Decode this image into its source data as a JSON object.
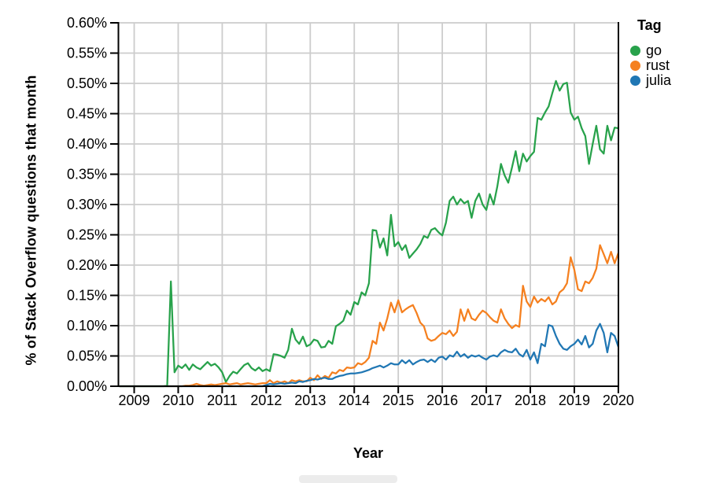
{
  "page": {
    "background": "#ffffff"
  },
  "chart_data": {
    "type": "line",
    "title": "",
    "xlabel": "Year",
    "ylabel": "% of Stack Overflow questions that month",
    "x_unit": "month",
    "x_start": "2008-09",
    "x_end": "2020-01",
    "points_per_series": 137,
    "ylim": [
      0,
      0.6
    ],
    "grid": true,
    "legend": {
      "title": "Tag",
      "position": "right"
    },
    "colors": {
      "axis": "#000000",
      "grid": "#cccccc",
      "text": "#000000"
    },
    "y_ticks": [
      {
        "v": 0.0,
        "label": "0.00%"
      },
      {
        "v": 0.05,
        "label": "0.05%"
      },
      {
        "v": 0.1,
        "label": "0.10%"
      },
      {
        "v": 0.15,
        "label": "0.15%"
      },
      {
        "v": 0.2,
        "label": "0.20%"
      },
      {
        "v": 0.25,
        "label": "0.25%"
      },
      {
        "v": 0.3,
        "label": "0.30%"
      },
      {
        "v": 0.35,
        "label": "0.35%"
      },
      {
        "v": 0.4,
        "label": "0.40%"
      },
      {
        "v": 0.45,
        "label": "0.45%"
      },
      {
        "v": 0.5,
        "label": "0.50%"
      },
      {
        "v": 0.55,
        "label": "0.55%"
      },
      {
        "v": 0.6,
        "label": "0.60%"
      }
    ],
    "x_ticks": [
      {
        "v": 2009,
        "label": "2009"
      },
      {
        "v": 2010,
        "label": "2010"
      },
      {
        "v": 2011,
        "label": "2011"
      },
      {
        "v": 2012,
        "label": "2012"
      },
      {
        "v": 2013,
        "label": "2013"
      },
      {
        "v": 2014,
        "label": "2014"
      },
      {
        "v": 2015,
        "label": "2015"
      },
      {
        "v": 2016,
        "label": "2016"
      },
      {
        "v": 2017,
        "label": "2017"
      },
      {
        "v": 2018,
        "label": "2018"
      },
      {
        "v": 2019,
        "label": "2019"
      },
      {
        "v": 2020,
        "label": "2020"
      }
    ],
    "series": [
      {
        "name": "go",
        "color": "#28a24b",
        "values": [
          0,
          0,
          0,
          0,
          0,
          0,
          0,
          0,
          0,
          0,
          0,
          0,
          0,
          0.001,
          0.173,
          0.023,
          0.034,
          0.03,
          0.036,
          0.027,
          0.036,
          0.031,
          0.028,
          0.034,
          0.04,
          0.034,
          0.037,
          0.031,
          0.023,
          0.007,
          0.017,
          0.024,
          0.021,
          0.028,
          0.035,
          0.038,
          0.03,
          0.026,
          0.031,
          0.025,
          0.028,
          0.025,
          0.053,
          0.052,
          0.05,
          0.047,
          0.06,
          0.095,
          0.077,
          0.07,
          0.082,
          0.066,
          0.069,
          0.077,
          0.075,
          0.064,
          0.065,
          0.075,
          0.07,
          0.099,
          0.103,
          0.108,
          0.125,
          0.118,
          0.139,
          0.135,
          0.155,
          0.15,
          0.17,
          0.258,
          0.257,
          0.229,
          0.244,
          0.216,
          0.283,
          0.231,
          0.238,
          0.225,
          0.233,
          0.212,
          0.219,
          0.226,
          0.235,
          0.248,
          0.245,
          0.258,
          0.261,
          0.254,
          0.249,
          0.27,
          0.306,
          0.313,
          0.3,
          0.309,
          0.302,
          0.306,
          0.278,
          0.306,
          0.318,
          0.3,
          0.291,
          0.317,
          0.3,
          0.33,
          0.367,
          0.348,
          0.336,
          0.361,
          0.388,
          0.355,
          0.384,
          0.371,
          0.38,
          0.387,
          0.443,
          0.44,
          0.452,
          0.462,
          0.484,
          0.504,
          0.488,
          0.499,
          0.501,
          0.452,
          0.44,
          0.445,
          0.426,
          0.413,
          0.367,
          0.4,
          0.43,
          0.391,
          0.384,
          0.43,
          0.406,
          0.427,
          0.426
        ]
      },
      {
        "name": "rust",
        "color": "#f5801f",
        "values": [
          0,
          0,
          0,
          0,
          0,
          0,
          0,
          0,
          0,
          0,
          0,
          0,
          0,
          0,
          0,
          0,
          0,
          0,
          0.001,
          0.001,
          0.002,
          0.004,
          0.002,
          0.001,
          0.002,
          0.003,
          0.002,
          0.003,
          0.004,
          0.005,
          0.003,
          0.004,
          0.005,
          0.003,
          0.004,
          0.005,
          0.004,
          0.003,
          0.004,
          0.005,
          0.005,
          0.01,
          0.005,
          0.008,
          0.006,
          0.008,
          0.005,
          0.01,
          0.008,
          0.01,
          0.008,
          0.008,
          0.014,
          0.01,
          0.018,
          0.012,
          0.017,
          0.014,
          0.023,
          0.021,
          0.027,
          0.025,
          0.031,
          0.03,
          0.031,
          0.038,
          0.036,
          0.04,
          0.047,
          0.075,
          0.07,
          0.105,
          0.092,
          0.112,
          0.138,
          0.122,
          0.142,
          0.122,
          0.127,
          0.131,
          0.134,
          0.121,
          0.105,
          0.099,
          0.079,
          0.075,
          0.077,
          0.083,
          0.088,
          0.086,
          0.092,
          0.083,
          0.09,
          0.127,
          0.108,
          0.127,
          0.112,
          0.109,
          0.118,
          0.125,
          0.121,
          0.114,
          0.108,
          0.105,
          0.127,
          0.112,
          0.103,
          0.096,
          0.101,
          0.098,
          0.166,
          0.14,
          0.131,
          0.148,
          0.138,
          0.144,
          0.14,
          0.147,
          0.135,
          0.14,
          0.155,
          0.16,
          0.17,
          0.213,
          0.192,
          0.16,
          0.157,
          0.173,
          0.17,
          0.179,
          0.194,
          0.233,
          0.218,
          0.203,
          0.222,
          0.203,
          0.22
        ]
      },
      {
        "name": "julia",
        "color": "#2077b4",
        "values": [
          0,
          0,
          0,
          0,
          0,
          0,
          0,
          0,
          0,
          0,
          0,
          0,
          0,
          0,
          0,
          0,
          0,
          0,
          0,
          0,
          0,
          0,
          0,
          0,
          0,
          0,
          0,
          0,
          0,
          0,
          0,
          0,
          0,
          0,
          0,
          0,
          0,
          0,
          0,
          0,
          0.002,
          0.004,
          0.003,
          0.004,
          0.005,
          0.004,
          0.005,
          0.006,
          0.005,
          0.008,
          0.007,
          0.009,
          0.01,
          0.012,
          0.011,
          0.013,
          0.014,
          0.012,
          0.012,
          0.015,
          0.017,
          0.018,
          0.02,
          0.021,
          0.021,
          0.022,
          0.023,
          0.025,
          0.027,
          0.03,
          0.032,
          0.034,
          0.031,
          0.034,
          0.038,
          0.036,
          0.036,
          0.043,
          0.038,
          0.043,
          0.036,
          0.04,
          0.043,
          0.044,
          0.04,
          0.044,
          0.04,
          0.047,
          0.049,
          0.044,
          0.051,
          0.049,
          0.057,
          0.049,
          0.053,
          0.047,
          0.051,
          0.049,
          0.051,
          0.047,
          0.044,
          0.049,
          0.051,
          0.049,
          0.056,
          0.06,
          0.057,
          0.056,
          0.062,
          0.053,
          0.049,
          0.06,
          0.044,
          0.056,
          0.038,
          0.07,
          0.066,
          0.101,
          0.099,
          0.083,
          0.07,
          0.062,
          0.06,
          0.066,
          0.07,
          0.077,
          0.069,
          0.083,
          0.064,
          0.07,
          0.092,
          0.103,
          0.088,
          0.056,
          0.088,
          0.083,
          0.065
        ]
      }
    ]
  }
}
